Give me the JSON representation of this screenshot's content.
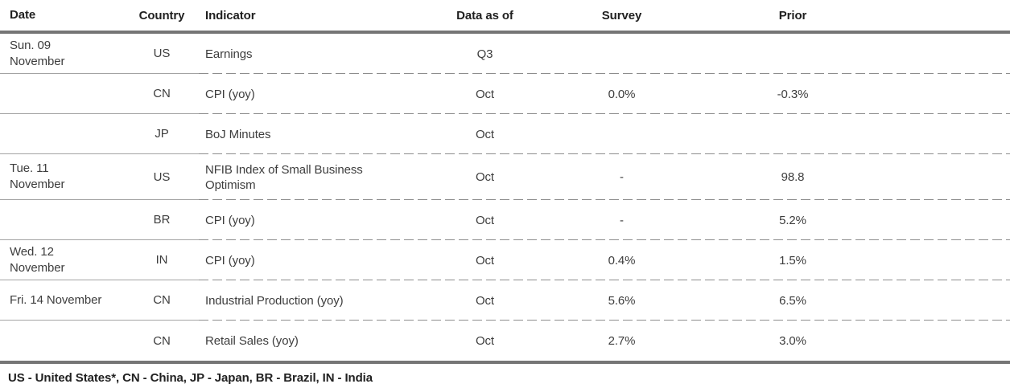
{
  "table": {
    "columns": [
      "Date",
      "Country",
      "Indicator",
      "Data as of",
      "Survey",
      "Prior"
    ],
    "rows": [
      {
        "date": "Sun. 09\nNovember",
        "country": "US",
        "indicator": "Earnings",
        "data_as_of": "Q3",
        "survey": "",
        "prior": ""
      },
      {
        "date": "",
        "country": "CN",
        "indicator": "CPI (yoy)",
        "data_as_of": "Oct",
        "survey": "0.0%",
        "prior": "-0.3%"
      },
      {
        "date": "",
        "country": "JP",
        "indicator": "BoJ Minutes",
        "data_as_of": "Oct",
        "survey": "",
        "prior": ""
      },
      {
        "date": "Tue. 11\nNovember",
        "country": "US",
        "indicator": "NFIB Index of Small Business Optimism",
        "data_as_of": "Oct",
        "survey": "-",
        "prior": "98.8"
      },
      {
        "date": "",
        "country": "BR",
        "indicator": "CPI (yoy)",
        "data_as_of": "Oct",
        "survey": "-",
        "prior": "5.2%"
      },
      {
        "date": "Wed. 12\nNovember",
        "country": "IN",
        "indicator": "CPI (yoy)",
        "data_as_of": "Oct",
        "survey": "0.4%",
        "prior": "1.5%"
      },
      {
        "date": "Fri. 14 November",
        "country": "CN",
        "indicator": "Industrial Production (yoy)",
        "data_as_of": "Oct",
        "survey": "5.6%",
        "prior": "6.5%"
      },
      {
        "date": "",
        "country": "CN",
        "indicator": "Retail Sales (yoy)",
        "data_as_of": "Oct",
        "survey": "2.7%",
        "prior": "3.0%"
      }
    ],
    "footnote": "US - United States*, CN - China, JP - Japan, BR - Brazil, IN - India",
    "colors": {
      "thick_rule": "#757575",
      "solid_separator": "#a3a3a3",
      "dashed_separator": "#8d8d8d",
      "header_text": "#212121",
      "body_text": "#3d3d3d"
    }
  },
  "chart_data": {
    "type": "table",
    "title": "Economic calendar",
    "columns": [
      "Date",
      "Country",
      "Indicator",
      "Data as of",
      "Survey",
      "Prior"
    ],
    "rows": [
      [
        "Sun. 09 November",
        "US",
        "Earnings",
        "Q3",
        "",
        ""
      ],
      [
        "",
        "CN",
        "CPI (yoy)",
        "Oct",
        "0.0%",
        "-0.3%"
      ],
      [
        "",
        "JP",
        "BoJ Minutes",
        "Oct",
        "",
        ""
      ],
      [
        "Tue. 11 November",
        "US",
        "NFIB Index of Small Business Optimism",
        "Oct",
        "-",
        "98.8"
      ],
      [
        "",
        "BR",
        "CPI (yoy)",
        "Oct",
        "-",
        "5.2%"
      ],
      [
        "Wed. 12 November",
        "IN",
        "CPI (yoy)",
        "Oct",
        "0.4%",
        "1.5%"
      ],
      [
        "Fri. 14 November",
        "CN",
        "Industrial Production (yoy)",
        "Oct",
        "5.6%",
        "6.5%"
      ],
      [
        "",
        "CN",
        "Retail Sales (yoy)",
        "Oct",
        "2.7%",
        "3.0%"
      ]
    ],
    "footnote": "US - United States*, CN - China, JP - Japan, BR - Brazil, IN - India"
  }
}
